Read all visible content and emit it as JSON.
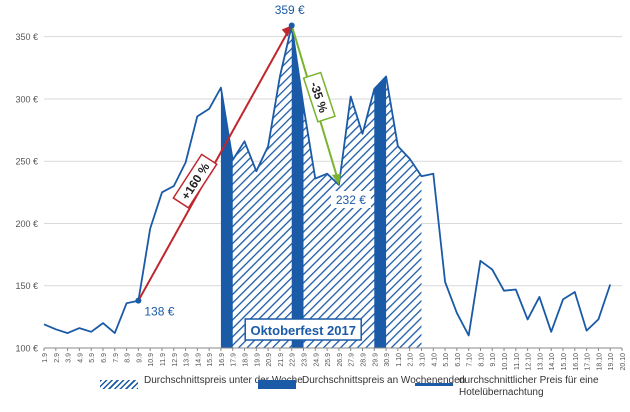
{
  "chart_data": {
    "type": "line",
    "categories": [
      "1.9",
      "2.9",
      "3.9",
      "4.9",
      "5.9",
      "6.9",
      "7.9",
      "8.9",
      "9.9",
      "10.9",
      "11.9",
      "12.9",
      "13.9",
      "14.9",
      "15.9",
      "16.9",
      "17.9",
      "18.9",
      "19.9",
      "20.9",
      "21.9",
      "22.9",
      "23.9",
      "24.9",
      "25.9",
      "26.9",
      "27.9",
      "28.9",
      "29.9",
      "30.9",
      "1.10",
      "2.10",
      "3.10",
      "4.10",
      "5.10",
      "6.10",
      "7.10",
      "8.10",
      "9.10",
      "10.10",
      "11.10",
      "12.10",
      "13.10",
      "14.10",
      "15.10",
      "16.10",
      "17.10",
      "18.10",
      "19.10",
      "20.10"
    ],
    "series": [
      {
        "name": "durchschnittlicher Preis für eine Hotelübernachtung",
        "values": [
          119,
          115,
          112,
          116,
          113,
          120,
          112,
          136,
          138,
          196,
          225,
          230,
          249,
          286,
          292,
          309,
          251,
          266,
          242,
          262,
          318,
          359,
          294,
          236,
          240,
          231,
          302,
          272,
          308,
          318,
          262,
          252,
          238,
          240,
          153,
          128,
          110,
          170,
          163,
          146,
          147,
          123,
          141,
          113,
          139,
          145,
          114,
          123,
          151,
          null
        ]
      }
    ],
    "fills": {
      "weekday_label": "Durchschnittspreis unter der Woche",
      "weekend_label": "Durchschnittspreis an Wochenenden",
      "oktoberfest_start": "16.9",
      "oktoberfest_end": "3.10",
      "weekend_segments": [
        [
          "16.9",
          "17.9"
        ],
        [
          "22.9",
          "23.9"
        ],
        [
          "29.9",
          "30.9"
        ]
      ]
    },
    "ylim": [
      100,
      365
    ],
    "yticks": [
      100,
      150,
      200,
      250,
      300,
      350
    ],
    "ytick_labels": [
      "100 €",
      "150 €",
      "200 €",
      "250 €",
      "300 €",
      "350 €"
    ],
    "grid": true,
    "legend_position": "bottom",
    "annotations": {
      "event_label": "Oktoberfest 2017",
      "min_label": "138 €",
      "max_label": "359 €",
      "low_label": "232 €",
      "increase_label": "+160 %",
      "decrease_label": "-35 %"
    },
    "colors": {
      "primary": "#1a5aa6",
      "increase": "#c0272d",
      "decrease": "#7ab32e",
      "grid": "#d9d9d9"
    }
  },
  "legend": [
    {
      "label": "Durchschnittspreis unter der Woche",
      "swatch": "hatch"
    },
    {
      "label": "Durchschnittspreis an Wochenenden",
      "swatch": "solid"
    },
    {
      "label": "durchschnittlicher Preis für eine Hotelübernachtung",
      "swatch": "line"
    }
  ]
}
